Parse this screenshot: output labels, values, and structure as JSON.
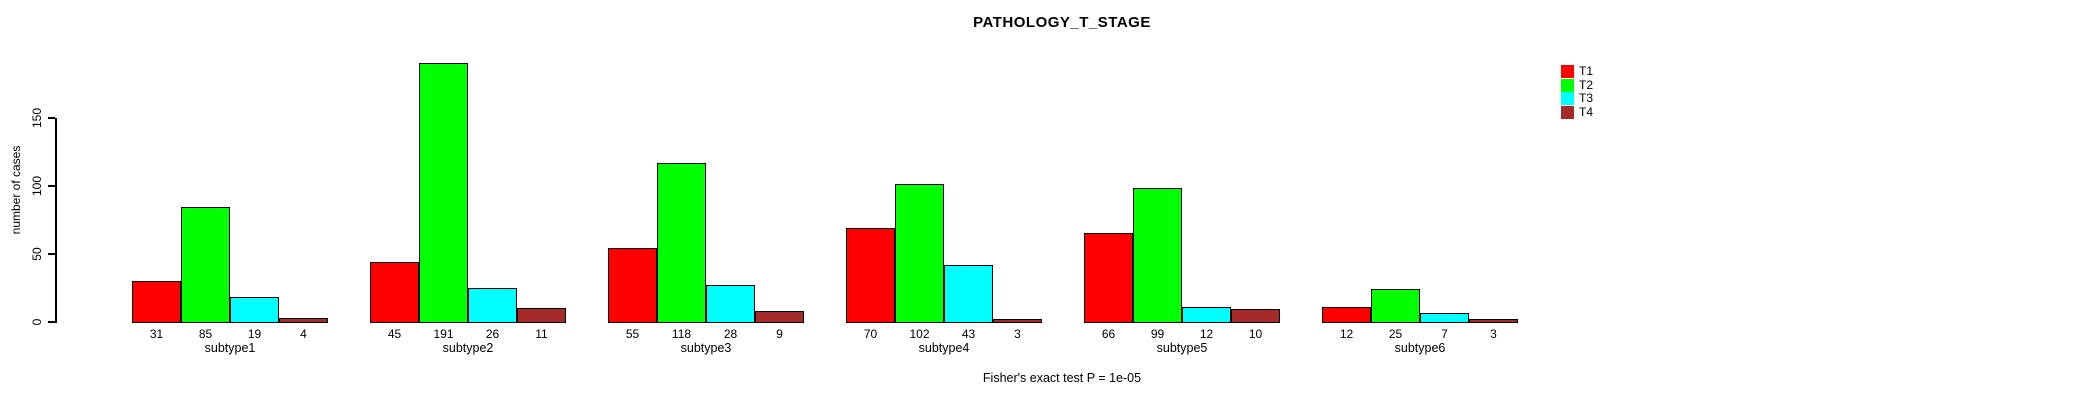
{
  "title": "PATHOLOGY_T_STAGE",
  "footer": "Fisher's exact test P = 1e-05",
  "y_axis": {
    "label": "number of cases",
    "ticks": [
      0,
      50,
      100,
      150
    ]
  },
  "legend": {
    "position": "top-right",
    "entries": [
      {
        "label": "T1",
        "color": "#FF0000"
      },
      {
        "label": "T2",
        "color": "#00FF00"
      },
      {
        "label": "T3",
        "color": "#00FFFF"
      },
      {
        "label": "T4",
        "color": "#A52A2A"
      }
    ]
  },
  "chart_data": {
    "type": "bar",
    "grouped": true,
    "title": "PATHOLOGY_T_STAGE",
    "xlabel": "",
    "ylabel": "number of cases",
    "ylim": [
      0,
      195
    ],
    "yticks": [
      0,
      50,
      100,
      150
    ],
    "grid": false,
    "legend_position": "top-right",
    "categories": [
      "subtype1",
      "subtype2",
      "subtype3",
      "subtype4",
      "subtype5",
      "subtype6"
    ],
    "series": [
      {
        "name": "T1",
        "color": "#FF0000",
        "values": [
          31,
          45,
          55,
          70,
          66,
          12
        ]
      },
      {
        "name": "T2",
        "color": "#00FF00",
        "values": [
          85,
          191,
          118,
          102,
          99,
          25
        ]
      },
      {
        "name": "T3",
        "color": "#00FFFF",
        "values": [
          19,
          26,
          28,
          43,
          12,
          7
        ]
      },
      {
        "name": "T4",
        "color": "#A52A2A",
        "values": [
          4,
          11,
          9,
          3,
          10,
          3
        ]
      }
    ],
    "value_labels_shown": true,
    "annotation": "Fisher's exact test P = 1e-05"
  }
}
